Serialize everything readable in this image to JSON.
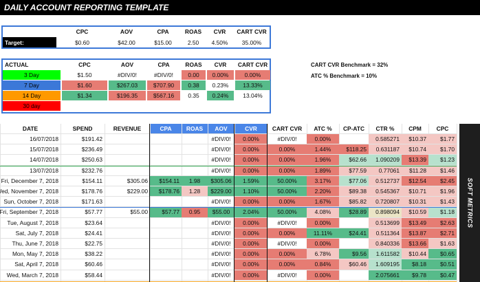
{
  "title": "DAILY ACCOUNT REPORTING TEMPLATE",
  "colors": {
    "green": "#57bb8a",
    "red": "#e67c73",
    "light_red": "#f4c7c3",
    "blue_header": "#4a86e8",
    "orange": "#f6a623"
  },
  "target": {
    "label": "Target:",
    "headers": [
      "CPC",
      "AOV",
      "CPA",
      "ROAS",
      "CVR",
      "CART CVR"
    ],
    "values": [
      "$0.60",
      "$42.00",
      "$15.00",
      "2.50",
      "4.50%",
      "35.00%"
    ]
  },
  "actual": {
    "label": "ACTUAL",
    "headers": [
      "CPC",
      "AOV",
      "CPA",
      "ROAS",
      "CVR",
      "CART CVR"
    ],
    "rows": [
      {
        "label": "3 Day",
        "values": [
          "$1.50",
          "#DIV/0!",
          "#DIV/0!",
          "0.00",
          "0.00%",
          "0.00%"
        ]
      },
      {
        "label": "7 Day",
        "values": [
          "$1.60",
          "$267.03",
          "$707.90",
          "0.38",
          "0.23%",
          "13.33%"
        ]
      },
      {
        "label": "14 Day",
        "values": [
          "$1.34",
          "$196.35",
          "$567.16",
          "0.35",
          "0.24%",
          "13.04%"
        ]
      },
      {
        "label": "30 day",
        "values": [
          "",
          "",
          "",
          "",
          "",
          ""
        ]
      }
    ]
  },
  "benchmarks": {
    "cart_cvr": "CART CVR Benchmark = 32%",
    "atc": "ATC % Benchmark = 10%"
  },
  "sidebar_label": "SOFT METRICS",
  "table": {
    "headers": [
      "DATE",
      "SPEND",
      "REVENUE",
      "CPA",
      "ROAS",
      "AOV",
      "CVR",
      "CART CVR",
      "ATC %",
      "CP-ATC",
      "CTR %",
      "CPM",
      "CPC"
    ],
    "rows": [
      [
        "16/07/2018",
        "$191.42",
        "",
        "",
        "",
        "#DIV/0!",
        "0.00%",
        "#DIV/0!",
        "0.00%",
        "",
        "0.585271",
        "$10.37",
        "$1.77"
      ],
      [
        "15/07/2018",
        "$236.49",
        "",
        "",
        "",
        "#DIV/0!",
        "0.00%",
        "0.00%",
        "1.44%",
        "$118.25",
        "0.631187",
        "$10.74",
        "$1.70"
      ],
      [
        "14/07/2018",
        "$250.63",
        "",
        "",
        "",
        "#DIV/0!",
        "0.00%",
        "0.00%",
        "1.96%",
        "$62.66",
        "1.090209",
        "$13.39",
        "$1.23"
      ],
      [
        "13/07/2018",
        "$232.76",
        "",
        "",
        "",
        "#DIV/0!",
        "0.00%",
        "0.00%",
        "1.89%",
        "$77.59",
        "0.77061",
        "$11.28",
        "$1.46"
      ],
      [
        "Fri, December 7, 2018",
        "$154.11",
        "$305.06",
        "$154.11",
        "1.98",
        "$305.06",
        "1.59%",
        "50.00%",
        "3.17%",
        "$77.06",
        "0.512737",
        "$12.54",
        "$2.45"
      ],
      [
        "Wed, November 7, 2018",
        "$178.76",
        "$229.00",
        "$178.76",
        "1.28",
        "$229.00",
        "1.10%",
        "50.00%",
        "2.20%",
        "$89.38",
        "0.545367",
        "$10.71",
        "$1.96"
      ],
      [
        "Sun, October 7, 2018",
        "$171.63",
        "",
        "",
        "",
        "#DIV/0!",
        "0.00%",
        "0.00%",
        "1.67%",
        "$85.82",
        "0.720807",
        "$10.31",
        "$1.43"
      ],
      [
        "Fri, September 7, 2018",
        "$57.77",
        "$55.00",
        "$57.77",
        "0.95",
        "$55.00",
        "2.04%",
        "50.00%",
        "4.08%",
        "$28.89",
        "0.898094",
        "$10.59",
        "$1.18"
      ],
      [
        "Tue, August 7, 2018",
        "$23.64",
        "",
        "",
        "",
        "#DIV/0!",
        "0.00%",
        "#DIV/0!",
        "0.00%",
        "",
        "0.513699",
        "$13.49",
        "$2.63"
      ],
      [
        "Sat, July 7, 2018",
        "$24.41",
        "",
        "",
        "",
        "#DIV/0!",
        "0.00%",
        "0.00%",
        "11.11%",
        "$24.41",
        "0.511364",
        "$13.87",
        "$2.71"
      ],
      [
        "Thu, June 7, 2018",
        "$22.75",
        "",
        "",
        "",
        "#DIV/0!",
        "0.00%",
        "#DIV/0!",
        "0.00%",
        "",
        "0.840336",
        "$13.66",
        "$1.63"
      ],
      [
        "Mon, May 7, 2018",
        "$38.22",
        "",
        "",
        "",
        "#DIV/0!",
        "0.00%",
        "0.00%",
        "6.78%",
        "$9.56",
        "1.611582",
        "$10.44",
        "$0.65"
      ],
      [
        "Sat, April 7, 2018",
        "$60.46",
        "",
        "",
        "",
        "#DIV/0!",
        "0.00%",
        "0.00%",
        "0.84%",
        "$60.46",
        "1.609195",
        "$8.18",
        "$0.51"
      ],
      [
        "Wed, March 7, 2018",
        "$58.44",
        "",
        "",
        "",
        "#DIV/0!",
        "0.00%",
        "#DIV/0!",
        "0.00%",
        "",
        "2.075661",
        "$9.78",
        "$0.47"
      ]
    ]
  }
}
